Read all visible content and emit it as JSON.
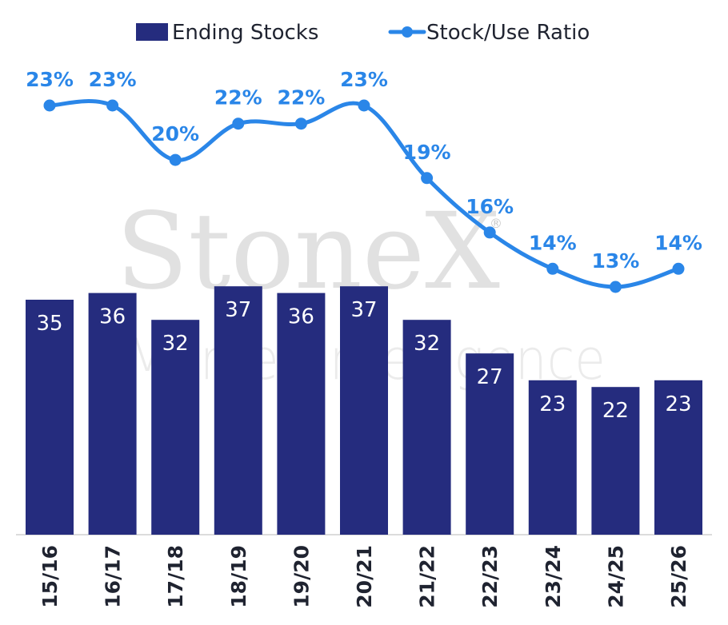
{
  "watermark": {
    "brand": "StoneX",
    "sub": "Market Intelligence",
    "mark": "®"
  },
  "chart_data": {
    "type": "bar",
    "categories": [
      "15/16",
      "16/17",
      "17/18",
      "18/19",
      "19/20",
      "20/21",
      "21/22",
      "22/23",
      "23/24",
      "24/25",
      "25/26"
    ],
    "series": [
      {
        "name": "Ending Stocks",
        "type": "bar",
        "color": "#252c7e",
        "values": [
          35,
          36,
          32,
          37,
          36,
          37,
          32,
          27,
          23,
          22,
          23
        ]
      },
      {
        "name": "Stock/Use Ratio",
        "type": "line",
        "color": "#2a86e8",
        "values": [
          23,
          23,
          20,
          22,
          22,
          23,
          19,
          16,
          14,
          13,
          14
        ],
        "labels": [
          "23%",
          "23%",
          "20%",
          "22%",
          "22%",
          "23%",
          "19%",
          "16%",
          "14%",
          "13%",
          "14%"
        ]
      }
    ],
    "legend": "top",
    "grid": false
  }
}
